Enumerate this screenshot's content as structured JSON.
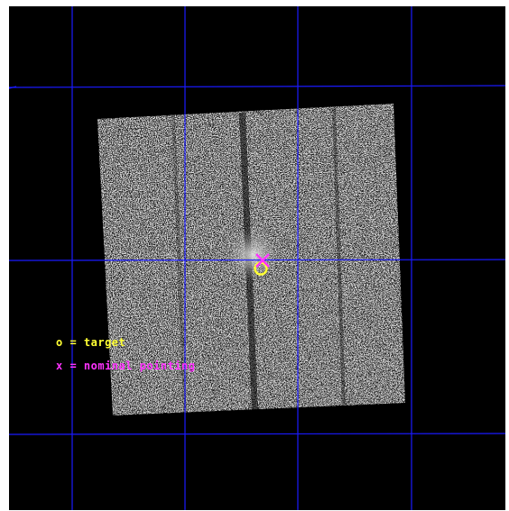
{
  "legend": {
    "target_label": "o = target",
    "target_color": "#ffff33",
    "pointing_label": "x = nominal pointing",
    "pointing_color": "#ff33ff"
  },
  "colors": {
    "background": "#000000",
    "grid": "#1a1aff",
    "frame_border": "#ffffff"
  },
  "markers": {
    "target_symbol": "circle-marker",
    "pointing_symbol": "cross-marker"
  }
}
